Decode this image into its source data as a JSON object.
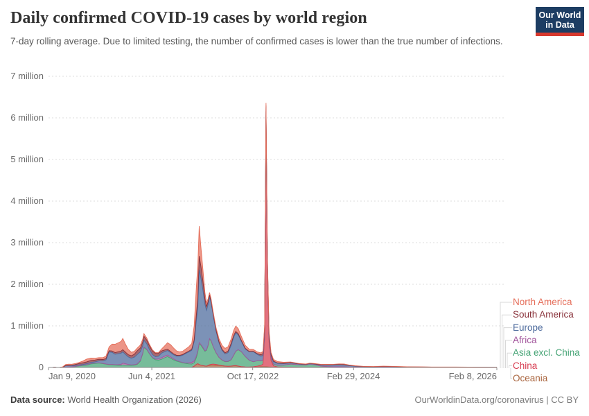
{
  "header": {
    "title": "Daily confirmed COVID-19 cases by world region",
    "subtitle": "7-day rolling average. Due to limited testing, the number of confirmed cases is lower than the true number of infections.",
    "logo": {
      "line1": "Our World",
      "line2": "in Data",
      "bg": "#1d3d63",
      "accent": "#d8392e"
    }
  },
  "footer": {
    "source_label": "Data source:",
    "source_value": " World Health Organization (2026)",
    "link": "OurWorldinData.org/coronavirus",
    "license": " | CC BY"
  },
  "chart_data": {
    "type": "area",
    "stacked": true,
    "title": "Daily confirmed COVID-19 cases by world region",
    "legend_position": "right",
    "grid": "dashed-horizontal",
    "x_unit": "days since Jan 9, 2020",
    "x_max": 2222,
    "values_unit": "thousands of daily cases (7-day rolling average)",
    "ylim_thousands": [
      0,
      7000
    ],
    "y_ticks": [
      {
        "label": "7 million",
        "value": 7000
      },
      {
        "label": "6 million",
        "value": 6000
      },
      {
        "label": "5 million",
        "value": 5000
      },
      {
        "label": "4 million",
        "value": 4000
      },
      {
        "label": "3 million",
        "value": 3000
      },
      {
        "label": "2 million",
        "value": 2000
      },
      {
        "label": "1 million",
        "value": 1000
      },
      {
        "label": "0",
        "value": 0
      }
    ],
    "x_ticks": [
      {
        "label": "Jan 9, 2020",
        "day": 0,
        "align": "left"
      },
      {
        "label": "Jun 4, 2021",
        "day": 512,
        "align": "center"
      },
      {
        "label": "Oct 17, 2022",
        "day": 1012,
        "align": "center"
      },
      {
        "label": "Feb 29, 2024",
        "day": 1512,
        "align": "center"
      },
      {
        "label": "Feb 8, 2026",
        "day": 2222,
        "align": "right"
      }
    ],
    "days": [
      0,
      20,
      30,
      40,
      55,
      70,
      85,
      100,
      115,
      130,
      150,
      170,
      190,
      210,
      230,
      250,
      270,
      285,
      300,
      315,
      330,
      345,
      360,
      368,
      380,
      395,
      410,
      425,
      440,
      455,
      467,
      473,
      487,
      500,
      515,
      530,
      545,
      560,
      575,
      590,
      605,
      620,
      635,
      650,
      665,
      680,
      695,
      710,
      722,
      733,
      740,
      747,
      755,
      765,
      775,
      783,
      791,
      798,
      806,
      816,
      830,
      845,
      860,
      875,
      890,
      905,
      918,
      928,
      940,
      955,
      975,
      995,
      1015,
      1035,
      1052,
      1063,
      1071,
      1078,
      1085,
      1093,
      1103,
      1115,
      1135,
      1165,
      1200,
      1240,
      1275,
      1295,
      1320,
      1350,
      1380,
      1410,
      1440,
      1465,
      1490,
      1520,
      1560,
      1610,
      1660,
      1720,
      1780,
      1840,
      1900,
      1960,
      2020,
      2080,
      2140,
      2200,
      2222
    ],
    "series": [
      {
        "name": "North America",
        "color": "#e56e5a",
        "values": [
          0,
          0,
          0.01,
          0.01,
          0.05,
          3,
          27,
          30,
          25,
          23,
          25,
          40,
          68,
          58,
          44,
          40,
          45,
          58,
          92,
          165,
          200,
          215,
          235,
          270,
          200,
          130,
          85,
          70,
          68,
          72,
          70,
          64,
          50,
          38,
          26,
          18,
          20,
          45,
          95,
          155,
          165,
          140,
          105,
          85,
          78,
          90,
          105,
          140,
          340,
          680,
          780,
          720,
          480,
          280,
          150,
          95,
          70,
          60,
          55,
          50,
          55,
          75,
          95,
          105,
          105,
          110,
          125,
          130,
          120,
          100,
          75,
          55,
          45,
          42,
          45,
          52,
          58,
          62,
          65,
          60,
          52,
          42,
          35,
          25,
          15,
          9,
          7,
          8,
          10,
          12,
          12,
          12,
          14,
          14,
          10,
          7,
          5,
          4,
          6,
          5,
          3,
          3,
          2,
          1.5,
          1.5,
          1.2,
          1,
          0.8,
          0.8
        ]
      },
      {
        "name": "South America",
        "color": "#883039",
        "values": [
          0,
          0,
          0,
          0,
          0,
          0.05,
          2,
          6,
          10,
          24,
          35,
          42,
          45,
          46,
          44,
          40,
          35,
          30,
          28,
          34,
          40,
          46,
          48,
          55,
          55,
          55,
          60,
          70,
          90,
          90,
          90,
          95,
          90,
          88,
          85,
          80,
          70,
          55,
          40,
          33,
          27,
          24,
          20,
          18,
          17,
          18,
          20,
          25,
          45,
          140,
          230,
          330,
          290,
          220,
          140,
          90,
          65,
          50,
          45,
          35,
          28,
          25,
          25,
          28,
          38,
          45,
          42,
          35,
          28,
          20,
          14,
          11,
          10,
          18,
          35,
          45,
          45,
          42,
          38,
          30,
          22,
          15,
          10,
          8,
          6,
          4,
          3,
          3,
          3,
          3,
          3,
          5,
          8,
          9,
          6,
          4,
          2,
          1.5,
          2,
          1.5,
          1,
          1,
          0.8,
          0.6,
          0.5,
          0.5,
          0.4,
          0.3,
          0.3
        ]
      },
      {
        "name": "Europe",
        "color": "#4c6a9c",
        "values": [
          0,
          0,
          0.01,
          0.01,
          0.8,
          9,
          35,
          32,
          27,
          20,
          18,
          16,
          18,
          24,
          30,
          45,
          60,
          100,
          300,
          290,
          250,
          260,
          270,
          270,
          230,
          180,
          160,
          180,
          225,
          215,
          180,
          165,
          130,
          95,
          70,
          55,
          65,
          110,
          110,
          108,
          105,
          100,
          105,
          130,
          175,
          230,
          260,
          290,
          460,
          850,
          1050,
          1750,
          1600,
          1380,
          1120,
          950,
          980,
          1000,
          900,
          750,
          520,
          350,
          230,
          180,
          210,
          340,
          430,
          440,
          360,
          250,
          180,
          200,
          240,
          150,
          110,
          105,
          100,
          95,
          90,
          80,
          65,
          52,
          45,
          38,
          28,
          18,
          14,
          15,
          18,
          28,
          38,
          42,
          48,
          45,
          32,
          22,
          14,
          10,
          14,
          12,
          8,
          7,
          5,
          4,
          4,
          4,
          3,
          2.5,
          2
        ]
      },
      {
        "name": "Africa",
        "color": "#a2559c",
        "values": [
          0,
          0,
          0,
          0,
          0.01,
          0.1,
          1,
          2,
          2.5,
          4,
          6,
          10,
          17,
          11,
          9,
          6,
          6,
          6,
          8,
          11,
          14,
          20,
          30,
          46,
          38,
          26,
          14,
          11,
          11,
          11,
          10,
          10,
          9,
          9,
          12,
          18,
          30,
          38,
          38,
          37,
          30,
          22,
          14,
          10,
          8,
          8,
          25,
          38,
          40,
          40,
          35,
          28,
          22,
          18,
          14,
          10,
          9,
          8,
          8,
          6,
          5,
          5,
          6,
          7,
          7,
          6,
          5,
          4,
          4,
          3,
          2.5,
          2,
          2,
          2,
          3,
          3,
          3,
          3,
          3,
          2.5,
          2,
          2,
          2,
          1.5,
          1,
          0.8,
          0.6,
          0.6,
          0.6,
          0.5,
          0.5,
          0.5,
          0.5,
          0.5,
          0.4,
          0.4,
          0.3,
          0.3,
          0.3,
          0.3,
          0.2,
          0.2,
          0.2,
          0.2,
          0.2,
          0.2,
          0.2,
          0.1,
          0.1
        ]
      },
      {
        "name": "Asia excl. China",
        "color": "#44a374",
        "values": [
          0,
          0.05,
          0.1,
          0.15,
          0.5,
          2,
          6,
          9,
          13,
          20,
          35,
          45,
          55,
          85,
          95,
          105,
          90,
          78,
          65,
          62,
          55,
          50,
          45,
          58,
          52,
          48,
          48,
          55,
          75,
          150,
          330,
          480,
          430,
          330,
          230,
          185,
          175,
          195,
          230,
          260,
          220,
          180,
          150,
          130,
          110,
          95,
          85,
          80,
          85,
          160,
          280,
          500,
          480,
          420,
          350,
          380,
          480,
          620,
          560,
          420,
          280,
          180,
          130,
          105,
          110,
          150,
          250,
          340,
          390,
          360,
          250,
          160,
          120,
          130,
          110,
          100,
          95,
          90,
          85,
          75,
          60,
          45,
          38,
          45,
          75,
          60,
          55,
          75,
          60,
          30,
          18,
          14,
          12,
          10,
          8,
          6,
          5,
          6,
          8,
          6,
          4,
          3,
          3,
          4,
          5,
          3,
          2,
          1.5,
          1.5
        ]
      },
      {
        "name": "China",
        "color": "#d73c50",
        "values": [
          0.1,
          1.5,
          4.5,
          2,
          0.5,
          0.15,
          0.1,
          0.1,
          0.05,
          0.05,
          0.05,
          0.05,
          0.05,
          0.1,
          0.05,
          0.05,
          0.05,
          0.05,
          0.05,
          0.05,
          0.05,
          0.05,
          0.05,
          0.1,
          0.1,
          0.1,
          0.1,
          0.1,
          0.1,
          0.1,
          0.1,
          0.1,
          0.1,
          0.1,
          0.1,
          0.1,
          0.1,
          0.1,
          0.1,
          0.1,
          0.1,
          0.1,
          0.1,
          0.1,
          0.1,
          0.1,
          0.1,
          0.1,
          0.2,
          0.2,
          0.3,
          0.3,
          0.3,
          0.5,
          1,
          2,
          6,
          15,
          22,
          26,
          24,
          12,
          3,
          1,
          1.5,
          3,
          5,
          6,
          5,
          4,
          3,
          4,
          8,
          20,
          33,
          60,
          700,
          6050,
          2400,
          600,
          150,
          30,
          8,
          4,
          4,
          3,
          2,
          2,
          1.5,
          1,
          1,
          1,
          1,
          1,
          0.8,
          0.6,
          0.5,
          0.5,
          0.5,
          0.4,
          0.3,
          0.3,
          0.3,
          0.3,
          0.3,
          0.2,
          0.2,
          0.2,
          0.2
        ]
      },
      {
        "name": "Oceania",
        "color": "#a8633c",
        "values": [
          0,
          0,
          0,
          0,
          0.01,
          0.3,
          0.4,
          0.2,
          0.1,
          0.1,
          0.1,
          0.1,
          0.2,
          0.4,
          0.4,
          0.1,
          0.05,
          0.05,
          0.05,
          0.05,
          0.05,
          0.05,
          0.05,
          0.05,
          0.05,
          0.05,
          0.05,
          0.05,
          0.05,
          0.05,
          0.05,
          0.05,
          0.05,
          0.05,
          0.05,
          0.1,
          0.3,
          1,
          1.5,
          2,
          2,
          2.2,
          2.4,
          2.2,
          1.8,
          1.5,
          1.5,
          3,
          30,
          75,
          90,
          70,
          55,
          45,
          35,
          30,
          40,
          50,
          55,
          55,
          50,
          48,
          42,
          32,
          28,
          30,
          38,
          40,
          30,
          18,
          10,
          7,
          8,
          12,
          16,
          18,
          18,
          17,
          15,
          12,
          9,
          7,
          6,
          4,
          3,
          2.5,
          2,
          2,
          2,
          2,
          2,
          2,
          2.5,
          3,
          2,
          1.5,
          1.2,
          1.5,
          1.5,
          1,
          0.8,
          0.7,
          0.5,
          0.5,
          0.5,
          0.4,
          0.3,
          0.3,
          0.2
        ]
      }
    ],
    "colors": {
      "grid": "#dcdcdc",
      "axis": "#8b8b8b",
      "connector": "#d8d8d8"
    }
  }
}
